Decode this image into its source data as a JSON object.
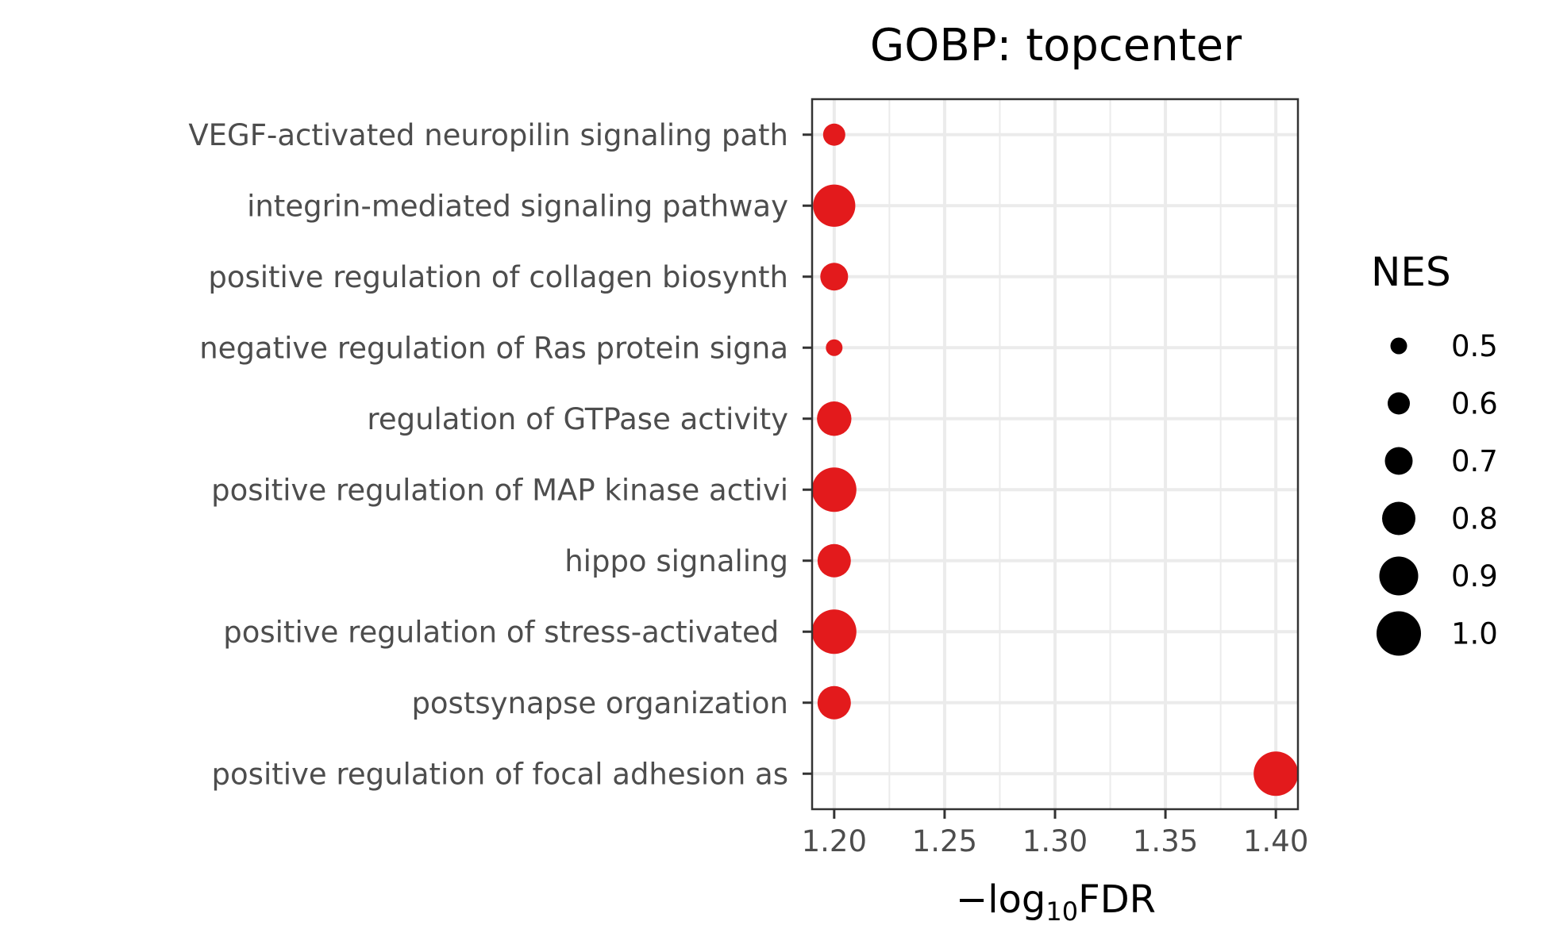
{
  "chart_data": {
    "type": "scatter",
    "title": "GOBP: topcenter",
    "xlabel_prefix": "−log",
    "xlabel_subscript": "10",
    "xlabel_suffix": "FDR",
    "ylabel": "",
    "categories": [
      "VEGF-activated neuropilin signaling path",
      "integrin-mediated signaling pathway",
      "positive regulation of collagen biosynth",
      "negative regulation of Ras protein signa",
      "regulation of GTPase activity",
      "positive regulation of MAP kinase activi",
      "hippo signaling",
      "positive regulation of stress-activated ",
      "postsynapse organization",
      "positive regulation of focal adhesion as"
    ],
    "x": [
      1.2,
      1.2,
      1.2,
      1.2,
      1.2,
      1.2,
      1.2,
      1.2,
      1.2,
      1.4
    ],
    "size_values": [
      0.6,
      0.96,
      0.7,
      0.5,
      0.82,
      1.0,
      0.8,
      1.0,
      0.8,
      1.0
    ],
    "size_variable": "NES",
    "point_color": "#e31a1c",
    "xlim": [
      1.19,
      1.41
    ],
    "xticks": [
      1.2,
      1.25,
      1.3,
      1.35,
      1.4
    ],
    "xtick_labels": [
      "1.20",
      "1.25",
      "1.30",
      "1.35",
      "1.40"
    ],
    "grid": true,
    "legend": {
      "title": "NES",
      "placement": "right",
      "values": [
        0.5,
        0.6,
        0.7,
        0.8,
        0.9,
        1.0
      ],
      "labels": [
        "0.5",
        "0.6",
        "0.7",
        "0.8",
        "0.9",
        "1.0"
      ]
    }
  }
}
